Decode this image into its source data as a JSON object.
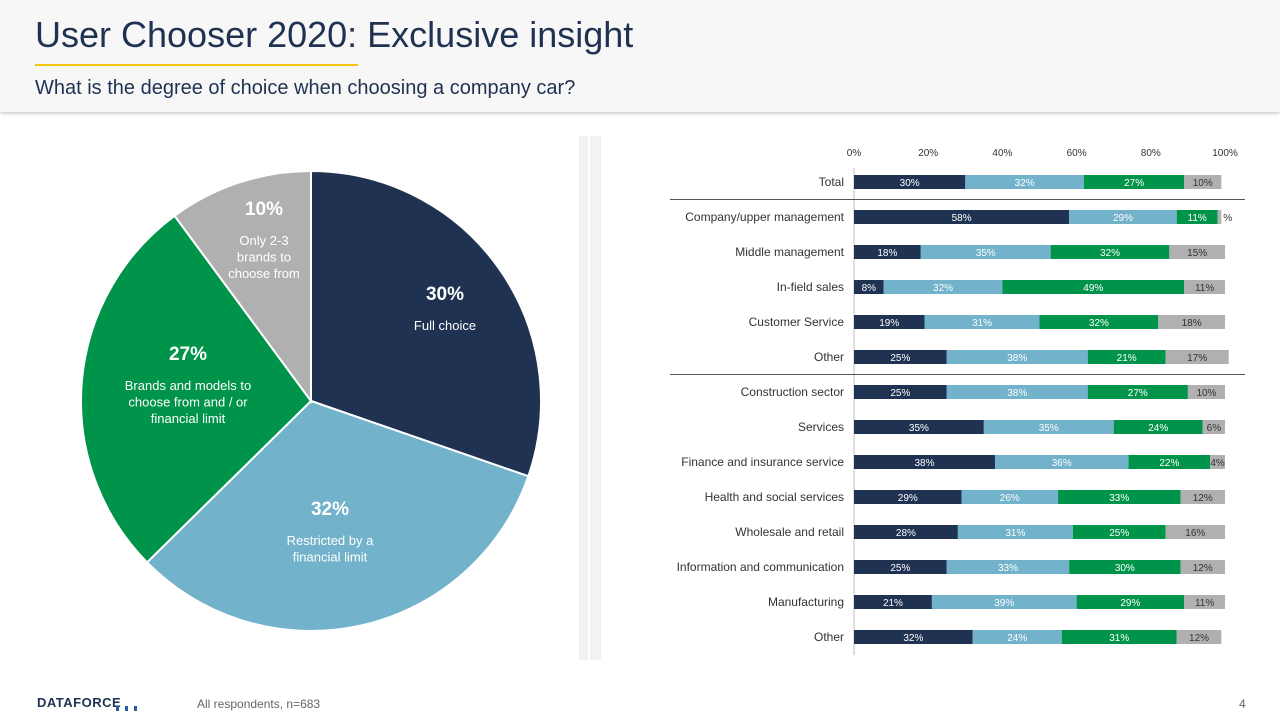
{
  "header": {
    "title": "User Chooser 2020: Exclusive insight",
    "subtitle": "What is the degree of choice when choosing a company car?"
  },
  "footer": {
    "logo": "DATAFORCE",
    "note": "All respondents,  n=683",
    "page": "4"
  },
  "colors": {
    "navy": "#1f3251",
    "lightblue": "#72b2cb",
    "green": "#00944a",
    "gray": "#b0b0b0",
    "accent": "#f2c40f"
  },
  "chart_data": [
    {
      "type": "pie",
      "slices": [
        {
          "value": 30,
          "label": "30%",
          "text": "Full choice",
          "color": "#1f3251"
        },
        {
          "value": 32,
          "label": "32%",
          "text": "Restricted by a financial limit",
          "color": "#72b2cb"
        },
        {
          "value": 27,
          "label": "27%",
          "text": "Brands and models to choose from and / or financial limit",
          "color": "#00944a"
        },
        {
          "value": 10,
          "label": "10%",
          "text": "Only 2-3 brands to choose from",
          "color": "#b0b0b0"
        }
      ]
    },
    {
      "type": "bar",
      "orientation": "horizontal",
      "stacked": true,
      "xlim": [
        0,
        100
      ],
      "xticks": [
        "0%",
        "20%",
        "40%",
        "60%",
        "80%",
        "100%"
      ],
      "series_colors": [
        "#1f3251",
        "#72b2cb",
        "#00944a",
        "#b0b0b0"
      ],
      "categories": [
        "Total",
        "Company/upper management",
        "Middle management",
        "In-field sales",
        "Customer Service",
        "Other",
        "Construction sector",
        "Services",
        "Finance and insurance service",
        "Health and social services",
        "Wholesale and retail",
        "Information and communication",
        "Manufacturing",
        "Other"
      ],
      "values": [
        [
          30,
          32,
          27,
          10
        ],
        [
          58,
          29,
          11,
          1
        ],
        [
          18,
          35,
          32,
          15
        ],
        [
          8,
          32,
          49,
          11
        ],
        [
          19,
          31,
          32,
          18
        ],
        [
          25,
          38,
          21,
          17
        ],
        [
          25,
          38,
          27,
          10
        ],
        [
          35,
          35,
          24,
          6
        ],
        [
          38,
          36,
          22,
          4
        ],
        [
          29,
          26,
          33,
          12
        ],
        [
          28,
          31,
          25,
          16
        ],
        [
          25,
          33,
          30,
          12
        ],
        [
          21,
          39,
          29,
          11
        ],
        [
          32,
          24,
          31,
          12
        ]
      ],
      "labels": [
        [
          "30%",
          "32%",
          "27%",
          "10%"
        ],
        [
          "58%",
          "29%",
          "11%",
          "%"
        ],
        [
          "18%",
          "35%",
          "32%",
          "15%"
        ],
        [
          "8%",
          "32%",
          "49%",
          "11%"
        ],
        [
          "19%",
          "31%",
          "32%",
          "18%"
        ],
        [
          "25%",
          "38%",
          "21%",
          "17%"
        ],
        [
          "25%",
          "38%",
          "27%",
          "10%"
        ],
        [
          "35%",
          "35%",
          "24%",
          "6%"
        ],
        [
          "38%",
          "36%",
          "22%",
          "4%"
        ],
        [
          "29%",
          "26%",
          "33%",
          "12%"
        ],
        [
          "28%",
          "31%",
          "25%",
          "16%"
        ],
        [
          "25%",
          "33%",
          "30%",
          "12%"
        ],
        [
          "21%",
          "39%",
          "29%",
          "11%"
        ],
        [
          "32%",
          "24%",
          "31%",
          "12%"
        ]
      ],
      "group_separators_after": [
        0,
        5
      ]
    }
  ]
}
